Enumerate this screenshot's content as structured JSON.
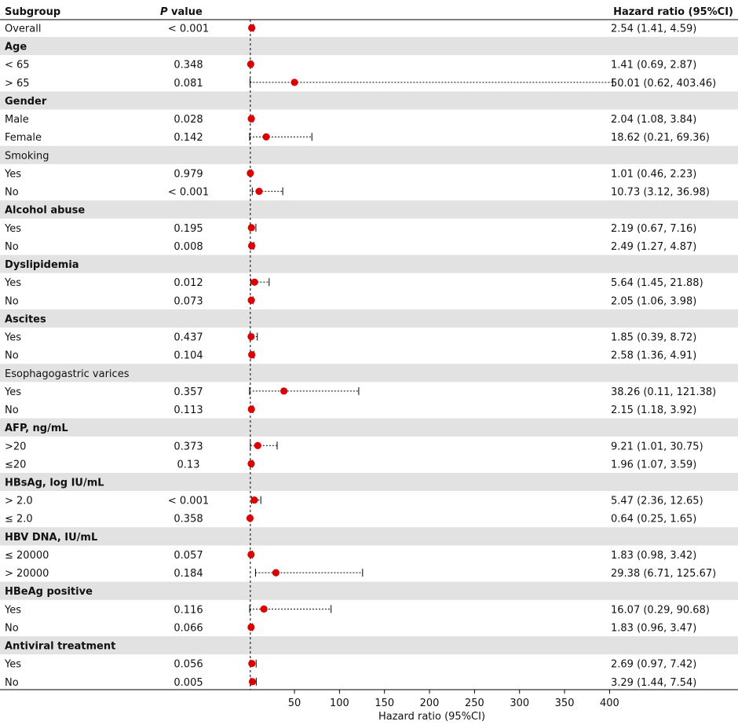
{
  "chart_data": {
    "type": "forest",
    "headers": {
      "subgroup": "Subgroup",
      "p_value_italic": "P",
      "p_value_rest": " value",
      "hazard_ratio": "Hazard ratio (95%CI)"
    },
    "xlabel": "Hazard ratio (95%CI)",
    "xlim": [
      -1.5,
      404
    ],
    "xticks": [
      50,
      100,
      150,
      200,
      250,
      300,
      350,
      400
    ],
    "reference_line": 1,
    "colors": {
      "point": "#dd0000",
      "band": "#e2e2e2",
      "line": "#000000"
    },
    "rows": [
      {
        "label": "Overall",
        "p": "< 0.001",
        "hr": 2.54,
        "lo": 1.41,
        "hi": 4.59,
        "text": "2.54 (1.41, 4.59)"
      },
      {
        "header": true,
        "bold": true,
        "label": "Age"
      },
      {
        "label": "< 65",
        "p": "0.348",
        "hr": 1.41,
        "lo": 0.69,
        "hi": 2.87,
        "text": "1.41 (0.69, 2.87)"
      },
      {
        "label": "> 65",
        "p": "0.081",
        "hr": 50.01,
        "lo": 0.62,
        "hi": 403.46,
        "text": "50.01 (0.62, 403.46)"
      },
      {
        "header": true,
        "bold": true,
        "label": "Gender"
      },
      {
        "label": "Male",
        "p": "0.028",
        "hr": 2.04,
        "lo": 1.08,
        "hi": 3.84,
        "text": "2.04 (1.08, 3.84)"
      },
      {
        "label": "Female",
        "p": "0.142",
        "hr": 18.62,
        "lo": 0.21,
        "hi": 69.36,
        "text": "18.62 (0.21, 69.36)"
      },
      {
        "header": true,
        "bold": false,
        "label": "Smoking"
      },
      {
        "label": "Yes",
        "p": "0.979",
        "hr": 1.01,
        "lo": 0.46,
        "hi": 2.23,
        "text": "1.01 (0.46, 2.23)"
      },
      {
        "label": "No",
        "p": "< 0.001",
        "hr": 10.73,
        "lo": 3.12,
        "hi": 36.98,
        "text": "10.73 (3.12, 36.98)"
      },
      {
        "header": true,
        "bold": true,
        "label": "Alcohol abuse"
      },
      {
        "label": "Yes",
        "p": "0.195",
        "hr": 2.19,
        "lo": 0.67,
        "hi": 7.16,
        "text": "2.19 (0.67, 7.16)"
      },
      {
        "label": "No",
        "p": "0.008",
        "hr": 2.49,
        "lo": 1.27,
        "hi": 4.87,
        "text": "2.49 (1.27, 4.87)"
      },
      {
        "header": true,
        "bold": true,
        "label": "Dyslipidemia"
      },
      {
        "label": "Yes",
        "p": "0.012",
        "hr": 5.64,
        "lo": 1.45,
        "hi": 21.88,
        "text": "5.64 (1.45, 21.88)"
      },
      {
        "label": "No",
        "p": "0.073",
        "hr": 2.05,
        "lo": 1.06,
        "hi": 3.98,
        "text": "2.05 (1.06, 3.98)"
      },
      {
        "header": true,
        "bold": true,
        "label": "Ascites"
      },
      {
        "label": "Yes",
        "p": "0.437",
        "hr": 1.85,
        "lo": 0.39,
        "hi": 8.72,
        "text": "1.85 (0.39, 8.72)"
      },
      {
        "label": "No",
        "p": "0.104",
        "hr": 2.58,
        "lo": 1.36,
        "hi": 4.91,
        "text": "2.58 (1.36, 4.91)"
      },
      {
        "header": true,
        "bold": false,
        "label": "Esophagogastric varices"
      },
      {
        "label": "Yes",
        "p": "0.357",
        "hr": 38.26,
        "lo": 0.11,
        "hi": 121.38,
        "text": "38.26 (0.11, 121.38)"
      },
      {
        "label": "No",
        "p": "0.113",
        "hr": 2.15,
        "lo": 1.18,
        "hi": 3.92,
        "text": "2.15 (1.18, 3.92)"
      },
      {
        "header": true,
        "bold": true,
        "label": "AFP, ng/mL"
      },
      {
        "label": ">20",
        "p": "0.373",
        "hr": 9.21,
        "lo": 1.01,
        "hi": 30.75,
        "text": "9.21 (1.01, 30.75)"
      },
      {
        "label": "≤20",
        "p": "0.13",
        "hr": 1.96,
        "lo": 1.07,
        "hi": 3.59,
        "text": "1.96 (1.07, 3.59)"
      },
      {
        "header": true,
        "bold": true,
        "label": "HBsAg, log IU/mL"
      },
      {
        "label": "> 2.0",
        "p": "< 0.001",
        "hr": 5.47,
        "lo": 2.36,
        "hi": 12.65,
        "text": "5.47 (2.36, 12.65)"
      },
      {
        "label": "≤ 2.0",
        "p": "0.358",
        "hr": 0.64,
        "lo": 0.25,
        "hi": 1.65,
        "text": "0.64 (0.25, 1.65)"
      },
      {
        "header": true,
        "bold": true,
        "label": "HBV DNA, IU/mL"
      },
      {
        "label": "≤ 20000",
        "p": "0.057",
        "hr": 1.83,
        "lo": 0.98,
        "hi": 3.42,
        "text": "1.83 (0.98, 3.42)"
      },
      {
        "label": "> 20000",
        "p": "0.184",
        "hr": 29.38,
        "lo": 6.71,
        "hi": 125.67,
        "text": "29.38 (6.71, 125.67)"
      },
      {
        "header": true,
        "bold": true,
        "label": "HBeAg positive"
      },
      {
        "label": "Yes",
        "p": "0.116",
        "hr": 16.07,
        "lo": 0.29,
        "hi": 90.68,
        "text": "16.07 (0.29, 90.68)"
      },
      {
        "label": "No",
        "p": "0.066",
        "hr": 1.83,
        "lo": 0.96,
        "hi": 3.47,
        "text": "1.83 (0.96, 3.47)"
      },
      {
        "header": true,
        "bold": true,
        "label": "Antiviral treatment"
      },
      {
        "label": "Yes",
        "p": "0.056",
        "hr": 2.69,
        "lo": 0.97,
        "hi": 7.42,
        "text": "2.69 (0.97, 7.42)"
      },
      {
        "label": "No",
        "p": "0.005",
        "hr": 3.29,
        "lo": 1.44,
        "hi": 7.54,
        "text": "3.29 (1.44, 7.54)"
      }
    ]
  }
}
